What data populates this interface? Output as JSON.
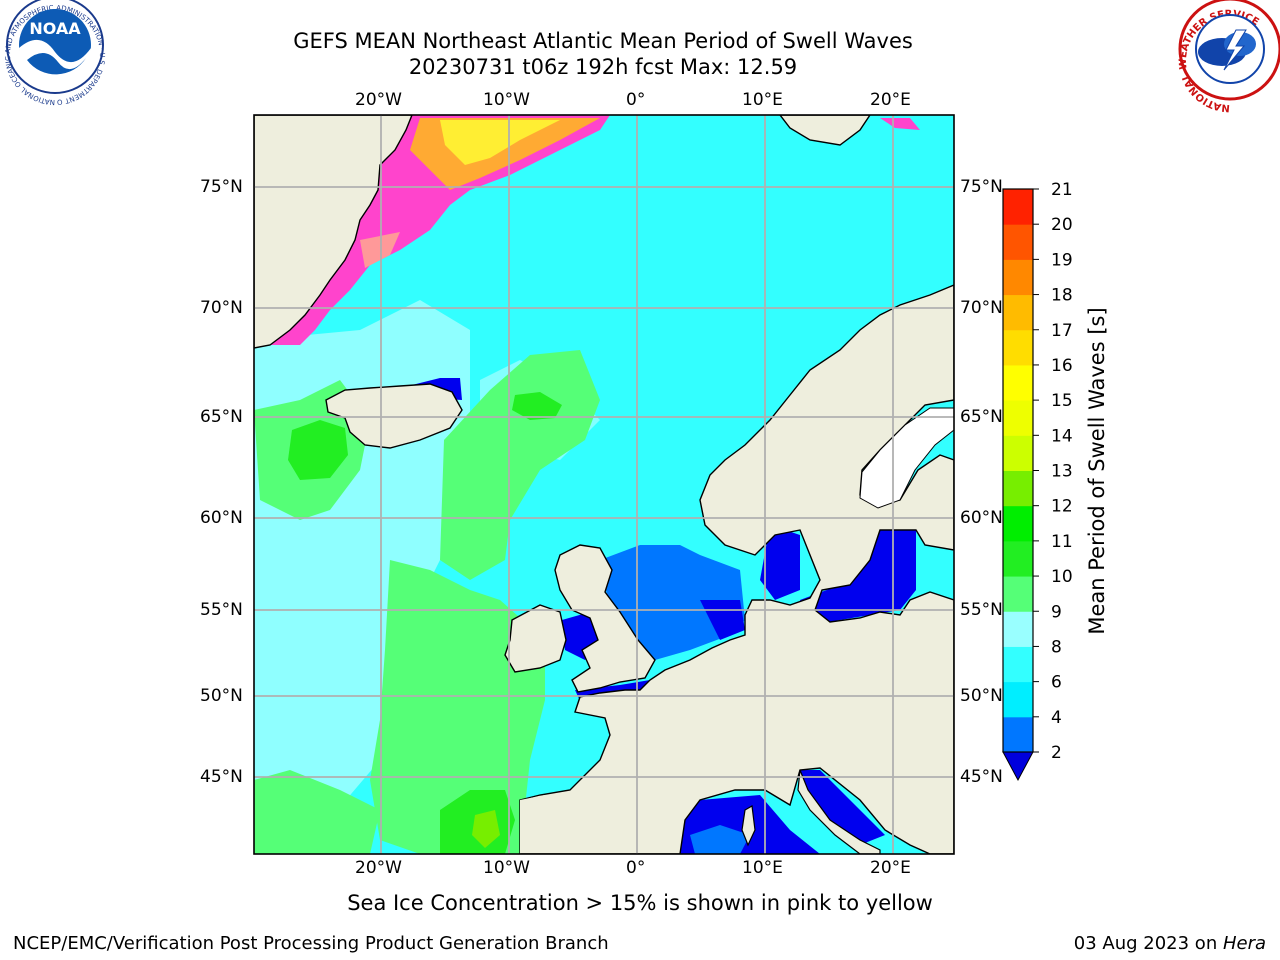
{
  "header": {
    "title_line1": "GEFS MEAN Northeast Atlantic Mean Period of Swell Waves",
    "title_line2": "20230731 t06z 192h fcst   Max: 12.59"
  },
  "logos": {
    "left": {
      "name": "NOAA",
      "ring_text": "NATIONAL OCEANIC AND ATMOSPHERIC ADMINISTRATION · U.S. DEPARTMENT OF COMMERCE",
      "center_text": "NOAA"
    },
    "right": {
      "name": "National Weather Service",
      "ring_text": "NATIONAL WEATHER SERVICE"
    }
  },
  "map": {
    "lon_labels_top": [
      "20°W",
      "10°W",
      "0°",
      "10°E",
      "20°E"
    ],
    "lon_labels_bottom": [
      "20°W",
      "10°W",
      "0°",
      "10°E",
      "20°E"
    ],
    "lat_labels_left": [
      "75°N",
      "70°N",
      "65°N",
      "60°N",
      "55°N",
      "50°N",
      "45°N"
    ],
    "lat_labels_right": [
      "75°N",
      "70°N",
      "65°N",
      "60°N",
      "55°N",
      "50°N",
      "45°N"
    ],
    "colors": {
      "ocean_light_cyan": "#33ffff",
      "ocean_pale": "#99ffff",
      "light_green": "#55ff77",
      "green": "#22ee22",
      "blue_shallow": "#0077ff",
      "deep_blue": "#0000ee",
      "land": "#eeeedd",
      "grid": "#b0b0b0",
      "ice_pink": "#ff44cc",
      "ice_orange": "#ffaa33",
      "ice_yellow": "#ffee33"
    }
  },
  "colorbar": {
    "label": "Mean Period of Swell Waves [s]",
    "ticks": [
      "2",
      "4",
      "6",
      "8",
      "9",
      "10",
      "11",
      "12",
      "13",
      "14",
      "15",
      "16",
      "17",
      "18",
      "19",
      "20",
      "21"
    ],
    "colors": [
      "#0000ee",
      "#0077ff",
      "#00eeff",
      "#33ffff",
      "#99ffff",
      "#55ff77",
      "#22ee22",
      "#00ee00",
      "#77ee00",
      "#ccff00",
      "#eeff00",
      "#ffff00",
      "#ffdd00",
      "#ffbb00",
      "#ff8800",
      "#ff5500",
      "#ff2200",
      "#ff0000"
    ],
    "under_color": "#0000dd"
  },
  "footer": {
    "note": "Sea Ice Concentration > 15% is shown in pink to yellow",
    "credit": "NCEP/EMC/Verification Post Processing Product Generation Branch",
    "date_prefix": "03 Aug 2023 on ",
    "host": "Hera"
  }
}
